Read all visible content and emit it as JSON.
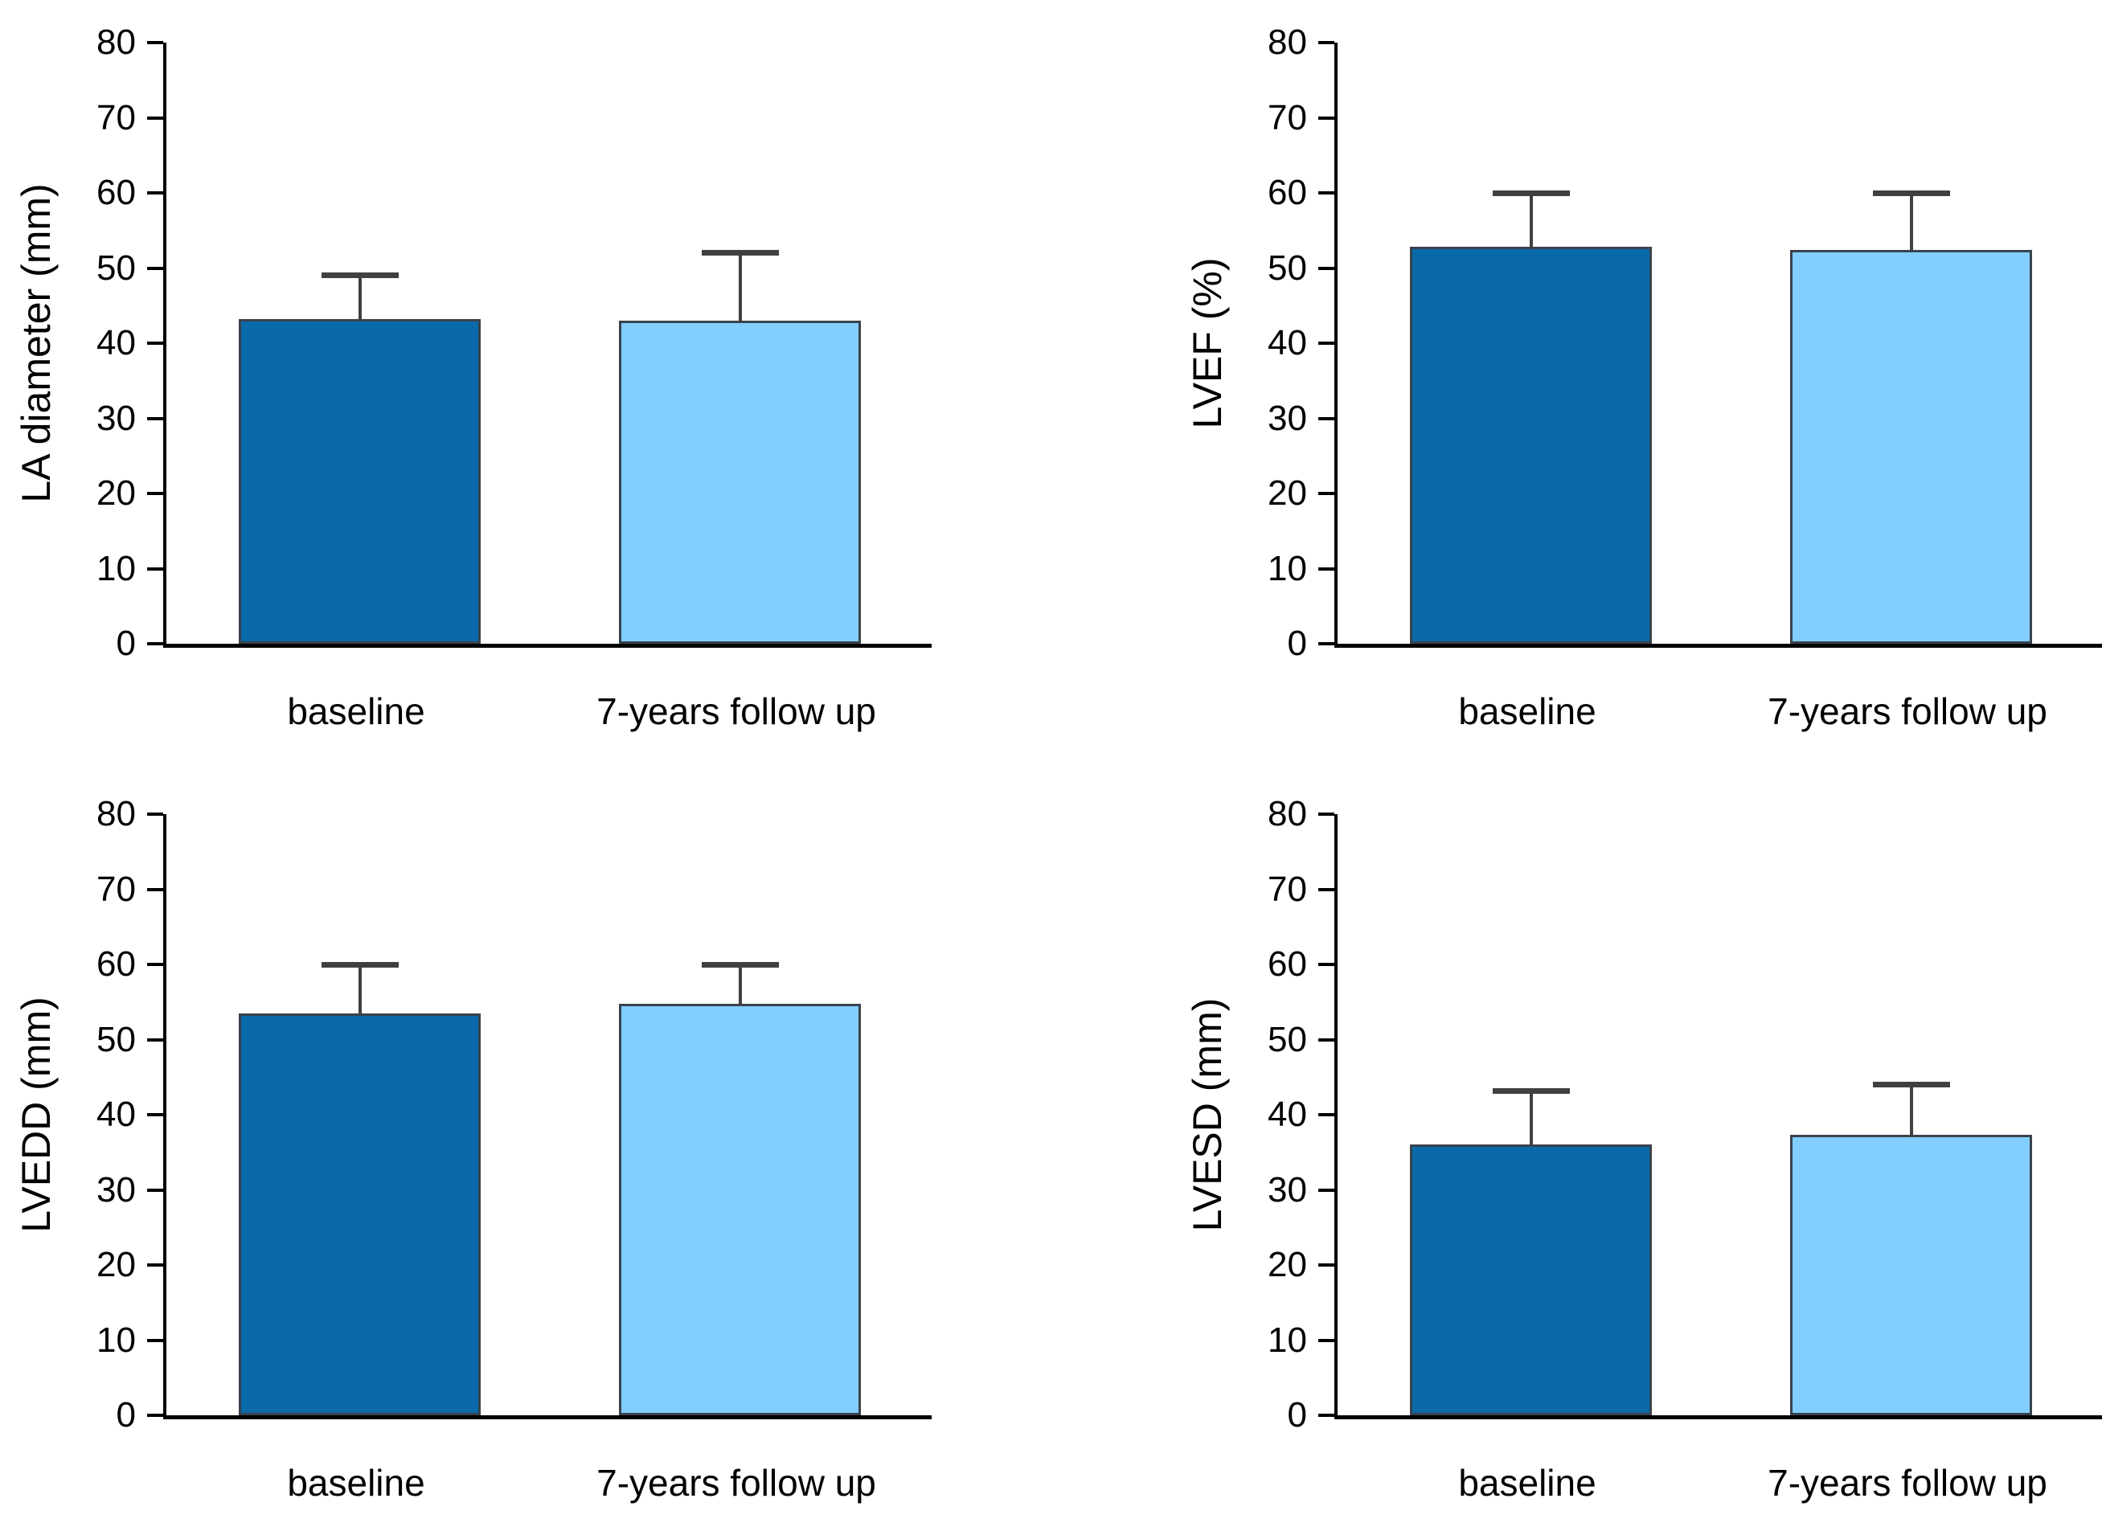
{
  "figure": {
    "background": "#ffffff",
    "description_labels": {
      "category_baseline": "baseline",
      "category_followup": "7-years follow up"
    }
  },
  "colors": {
    "bar_baseline_fill": "#0a69a9",
    "bar_followup_fill": "#82cfff",
    "bar_border": "#39424d",
    "error_bar": "#404040",
    "axis": "#000000"
  },
  "axis": {
    "ymin": 0,
    "ymax": 80,
    "ytick_step": 10,
    "tick_labels": [
      "0",
      "10",
      "20",
      "30",
      "40",
      "50",
      "60",
      "70",
      "80"
    ]
  },
  "chart_data": [
    {
      "type": "bar",
      "title": "",
      "ylabel": "LA diameter (mm)",
      "xlabel": "",
      "categories": [
        "baseline",
        "7-years follow up"
      ],
      "values": [
        43.2,
        43.0
      ],
      "error_top": [
        49.0,
        52.0
      ],
      "ylim": [
        0,
        80
      ],
      "grid": false,
      "legend": "none",
      "bar_colors": [
        "#0a69a9",
        "#82cfff"
      ]
    },
    {
      "type": "bar",
      "title": "",
      "ylabel": "LVEF (%)",
      "xlabel": "",
      "categories": [
        "baseline",
        "7-years follow up"
      ],
      "values": [
        52.8,
        52.4
      ],
      "error_top": [
        60.0,
        60.0
      ],
      "ylim": [
        0,
        80
      ],
      "grid": false,
      "legend": "none",
      "bar_colors": [
        "#0a69a9",
        "#82cfff"
      ]
    },
    {
      "type": "bar",
      "title": "",
      "ylabel": "LVEDD (mm)",
      "xlabel": "",
      "categories": [
        "baseline",
        "7-years follow up"
      ],
      "values": [
        53.5,
        54.8
      ],
      "error_top": [
        60.0,
        60.0
      ],
      "ylim": [
        0,
        80
      ],
      "grid": false,
      "legend": "none",
      "bar_colors": [
        "#0a69a9",
        "#82cfff"
      ]
    },
    {
      "type": "bar",
      "title": "",
      "ylabel": "LVESD (mm)",
      "xlabel": "",
      "categories": [
        "baseline",
        "7-years follow up"
      ],
      "values": [
        36.0,
        37.3
      ],
      "error_top": [
        43.2,
        44.0
      ],
      "ylim": [
        0,
        80
      ],
      "grid": false,
      "legend": "none",
      "bar_colors": [
        "#0a69a9",
        "#82cfff"
      ]
    }
  ]
}
